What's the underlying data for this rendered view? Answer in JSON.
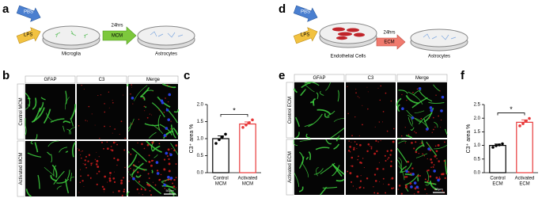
{
  "panel_labels": [
    "a",
    "b",
    "c",
    "d",
    "e",
    "f"
  ],
  "diagram_a": {
    "inputs": [
      "PBS",
      "LPS"
    ],
    "source": "Microglia",
    "time": "24hrs",
    "medium": "MCM",
    "target": "Astrocytes"
  },
  "diagram_d": {
    "inputs": [
      "PBS",
      "LPS"
    ],
    "source": "Endothelial Cells",
    "time": "24hrs",
    "medium": "ECM",
    "target": "Astrocytes"
  },
  "images_b": {
    "columns": [
      "GFAP",
      "C3",
      "Merge"
    ],
    "rows": [
      "Control MCM",
      "Activated MCM"
    ],
    "scale_bar": "50μm"
  },
  "images_e": {
    "columns": [
      "GFAP",
      "C3",
      "Merge"
    ],
    "rows": [
      "Control ECM",
      "Activated ECM"
    ],
    "scale_bar": "50μm"
  },
  "chart_data": [
    {
      "type": "bar",
      "ylabel": "C3⁺ area %",
      "categories": [
        [
          "Control",
          "MCM"
        ],
        [
          "Activated",
          "MCM"
        ]
      ],
      "values": [
        1.0,
        1.43
      ],
      "errors": [
        0.08,
        0.06
      ],
      "points": [
        [
          0.86,
          0.97,
          1.05,
          1.13
        ],
        [
          1.33,
          1.4,
          1.47,
          1.55
        ]
      ],
      "colors": [
        "#000000",
        "#e8393a"
      ],
      "ylim": [
        0,
        2.0
      ],
      "yticks": [
        {
          "value": 0,
          "label": "0.0"
        },
        0.5,
        {
          "value": 1.0,
          "label": "1.0"
        },
        1.5,
        {
          "value": 2.0,
          "label": "2.0"
        }
      ],
      "annotation": "*"
    },
    {
      "type": "bar",
      "ylabel": "C3⁺ area %",
      "categories": [
        [
          "Control",
          "ECM"
        ],
        [
          "Activated",
          "ECM"
        ]
      ],
      "values": [
        1.0,
        1.85
      ],
      "errors": [
        0.05,
        0.09
      ],
      "points": [
        [
          0.93,
          0.99,
          1.02,
          1.06
        ],
        [
          1.72,
          1.8,
          1.9,
          1.99
        ]
      ],
      "colors": [
        "#000000",
        "#e8393a"
      ],
      "ylim": [
        0,
        2.5
      ],
      "yticks": [
        {
          "value": 0,
          "label": "0.0"
        },
        0.5,
        {
          "value": 1.0,
          "label": "1.0"
        },
        1.5,
        {
          "value": 2.0,
          "label": "2.0"
        },
        2.5
      ],
      "annotation": "*"
    }
  ]
}
